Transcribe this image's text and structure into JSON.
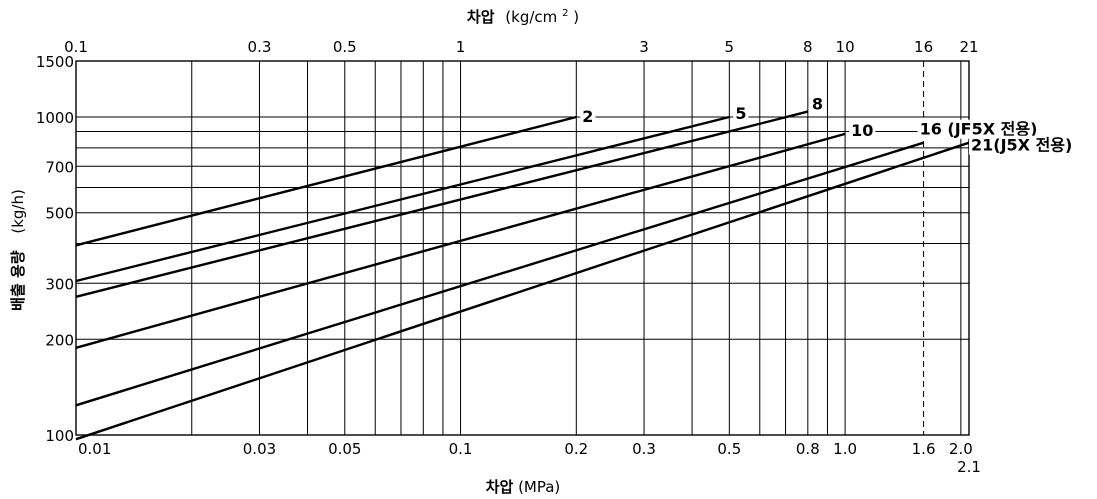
{
  "chart_data": {
    "type": "line",
    "x_scale": "log",
    "y_scale": "log",
    "xlim": [
      0.01,
      2.1
    ],
    "ylim": [
      100,
      1500
    ],
    "grid": true,
    "xlabel_bottom_bold": "차압",
    "xlabel_bottom_unit": "(MPa)",
    "xlabel_top_bold": "차압",
    "xlabel_top_unit": "(kg/cm",
    "xlabel_top_sup": "2",
    "xlabel_top_close": ")",
    "ylabel_bold": "배출 용량",
    "ylabel_unit": "(kg/h)",
    "x_ticks_bottom": [
      {
        "value": 0.01,
        "label": "0.01"
      },
      {
        "value": 0.03,
        "label": "0.03"
      },
      {
        "value": 0.05,
        "label": "0.05"
      },
      {
        "value": 0.1,
        "label": "0.1"
      },
      {
        "value": 0.2,
        "label": "0.2"
      },
      {
        "value": 0.3,
        "label": "0.3"
      },
      {
        "value": 0.5,
        "label": "0.5"
      },
      {
        "value": 0.8,
        "label": "0.8"
      },
      {
        "value": 1.0,
        "label": "1.0"
      },
      {
        "value": 1.6,
        "label": "1.6"
      },
      {
        "value": 2.0,
        "label": "2.0"
      },
      {
        "value": 2.1,
        "label": "2.1"
      }
    ],
    "x_ticks_top": [
      {
        "value": 0.1,
        "label": "0.1"
      },
      {
        "value": 0.3,
        "label": "0.3"
      },
      {
        "value": 0.5,
        "label": "0.5"
      },
      {
        "value": 1,
        "label": "1"
      },
      {
        "value": 3,
        "label": "3"
      },
      {
        "value": 5,
        "label": "5"
      },
      {
        "value": 8,
        "label": "8"
      },
      {
        "value": 10,
        "label": "10"
      },
      {
        "value": 16,
        "label": "16"
      },
      {
        "value": 21,
        "label": "21"
      }
    ],
    "y_ticks": [
      {
        "value": 100,
        "label": "100"
      },
      {
        "value": 200,
        "label": "200"
      },
      {
        "value": 300,
        "label": "300"
      },
      {
        "value": 500,
        "label": "500"
      },
      {
        "value": 700,
        "label": "700"
      },
      {
        "value": 1000,
        "label": "1000"
      },
      {
        "value": 1500,
        "label": "1500"
      }
    ],
    "x_grid": [
      0.02,
      0.03,
      0.04,
      0.05,
      0.06,
      0.07,
      0.08,
      0.09,
      0.1,
      0.2,
      0.3,
      0.4,
      0.5,
      0.6,
      0.7,
      0.8,
      0.9,
      1.0,
      2.0
    ],
    "x_grid_dashed": [
      1.6
    ],
    "y_grid": [
      200,
      300,
      400,
      500,
      600,
      700,
      800,
      900,
      1000
    ],
    "series": [
      {
        "name": "2",
        "x": [
          0.01,
          0.2
        ],
        "y": [
          395,
          1000
        ]
      },
      {
        "name": "5",
        "x": [
          0.01,
          0.5
        ],
        "y": [
          305,
          1000
        ]
      },
      {
        "name": "8",
        "x": [
          0.01,
          0.8
        ],
        "y": [
          272,
          1040
        ]
      },
      {
        "name": "10",
        "x": [
          0.01,
          1.0
        ],
        "y": [
          188,
          885
        ]
      },
      {
        "name": "16 (JF5X 전용)",
        "x": [
          0.01,
          1.6
        ],
        "y": [
          124,
          830
        ]
      },
      {
        "name": "21(J5X 전용)",
        "x": [
          0.01,
          2.1
        ],
        "y": [
          97,
          830
        ]
      }
    ]
  }
}
